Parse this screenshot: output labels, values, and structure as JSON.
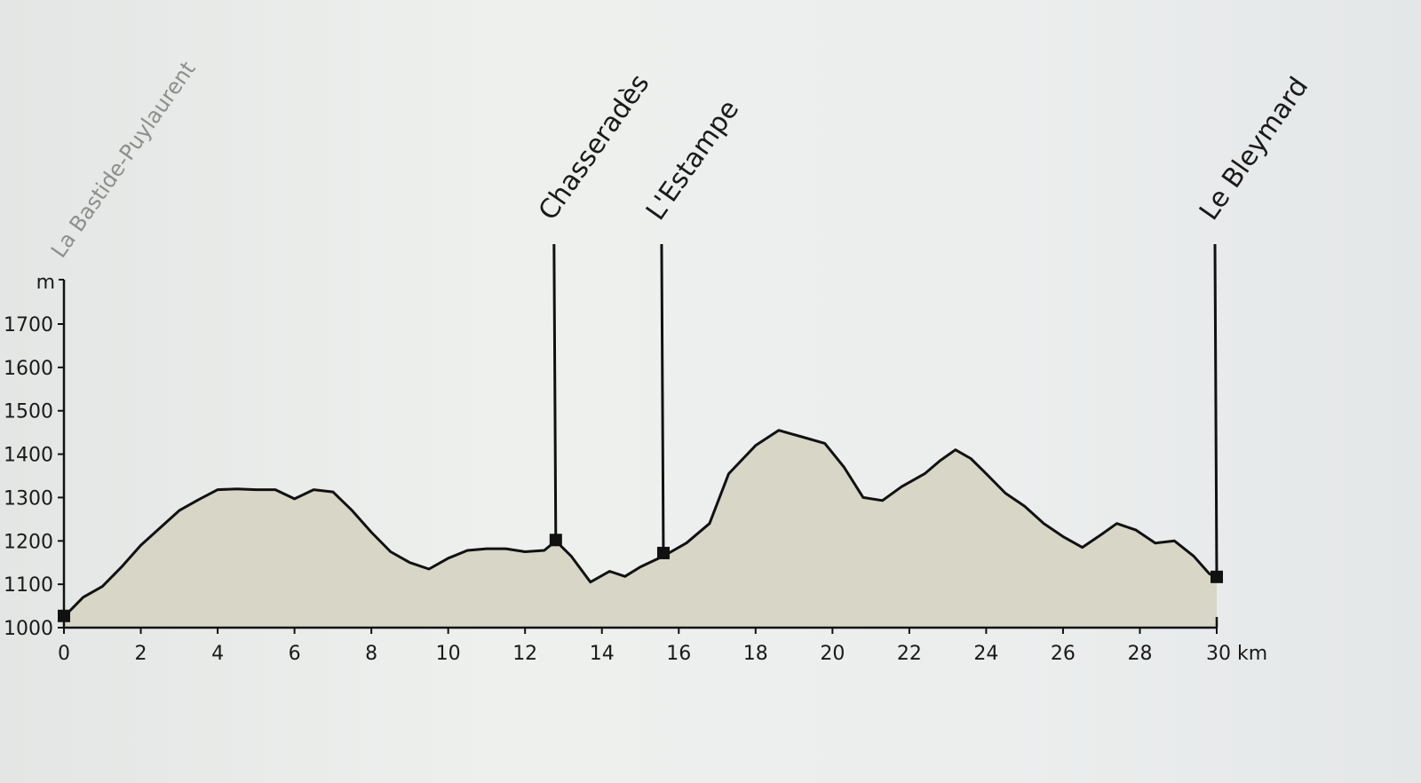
{
  "chart_data": {
    "type": "area",
    "title": "",
    "xlabel": "",
    "ylabel": "m",
    "x_unit": "km",
    "xlim": [
      0,
      30
    ],
    "ylim": [
      1000,
      1700
    ],
    "x_ticks": [
      "0",
      "2",
      "4",
      "6",
      "8",
      "10",
      "12",
      "14",
      "16",
      "18",
      "20",
      "22",
      "24",
      "26",
      "28",
      "30 km"
    ],
    "y_ticks": [
      "1000",
      "1100",
      "1200",
      "1300",
      "1400",
      "1500",
      "1600",
      "1700"
    ],
    "grid": false,
    "colors": {
      "fill": "#d8d6c7",
      "line": "#111111"
    },
    "points": [
      [
        0,
        1025
      ],
      [
        0.5,
        1070
      ],
      [
        1.0,
        1095
      ],
      [
        1.5,
        1140
      ],
      [
        2.0,
        1190
      ],
      [
        2.5,
        1230
      ],
      [
        3.0,
        1270
      ],
      [
        3.5,
        1295
      ],
      [
        4.0,
        1318
      ],
      [
        4.5,
        1320
      ],
      [
        5.0,
        1318
      ],
      [
        5.5,
        1318
      ],
      [
        6.0,
        1297
      ],
      [
        6.5,
        1318
      ],
      [
        7.0,
        1313
      ],
      [
        7.5,
        1270
      ],
      [
        8.0,
        1220
      ],
      [
        8.5,
        1175
      ],
      [
        9.0,
        1150
      ],
      [
        9.5,
        1135
      ],
      [
        10.0,
        1160
      ],
      [
        10.5,
        1178
      ],
      [
        11.0,
        1182
      ],
      [
        11.5,
        1182
      ],
      [
        12.0,
        1175
      ],
      [
        12.5,
        1178
      ],
      [
        12.8,
        1200
      ],
      [
        13.2,
        1165
      ],
      [
        13.7,
        1105
      ],
      [
        14.2,
        1130
      ],
      [
        14.6,
        1118
      ],
      [
        15.0,
        1140
      ],
      [
        15.6,
        1165
      ],
      [
        16.2,
        1195
      ],
      [
        16.8,
        1240
      ],
      [
        17.3,
        1355
      ],
      [
        18.0,
        1420
      ],
      [
        18.6,
        1455
      ],
      [
        19.2,
        1440
      ],
      [
        19.8,
        1425
      ],
      [
        20.3,
        1370
      ],
      [
        20.8,
        1300
      ],
      [
        21.3,
        1293
      ],
      [
        21.8,
        1325
      ],
      [
        22.4,
        1355
      ],
      [
        22.8,
        1385
      ],
      [
        23.2,
        1410
      ],
      [
        23.6,
        1390
      ],
      [
        24.0,
        1355
      ],
      [
        24.5,
        1310
      ],
      [
        25.0,
        1280
      ],
      [
        25.5,
        1240
      ],
      [
        26.0,
        1210
      ],
      [
        26.5,
        1185
      ],
      [
        27.0,
        1215
      ],
      [
        27.4,
        1240
      ],
      [
        27.9,
        1225
      ],
      [
        28.4,
        1195
      ],
      [
        28.9,
        1200
      ],
      [
        29.4,
        1165
      ],
      [
        29.8,
        1125
      ],
      [
        30.0,
        1115
      ]
    ],
    "annotations": [
      {
        "label": "La Bastide-Puylaurent",
        "x": 0,
        "y": 1025,
        "style": "faded"
      },
      {
        "label": "Chasseradès",
        "x": 12.8,
        "y": 1200,
        "style": "normal"
      },
      {
        "label": "L'Estampe",
        "x": 15.6,
        "y": 1170,
        "style": "normal"
      },
      {
        "label": "Le Bleymard",
        "x": 30,
        "y": 1115,
        "style": "normal"
      }
    ]
  }
}
